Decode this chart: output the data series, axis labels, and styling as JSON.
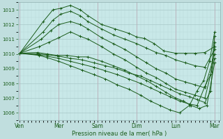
{
  "background_color": "#c0dede",
  "plot_bg_color": "#c8e8e8",
  "grid_major_color": "#a8c8c8",
  "grid_minor_color": "#b8d8d8",
  "line_color": "#1a5c1a",
  "ylim": [
    1005.5,
    1013.5
  ],
  "yticks": [
    1006,
    1007,
    1008,
    1009,
    1010,
    1011,
    1012,
    1013
  ],
  "xlabel": "Pression niveau de la mer( hPa )",
  "xtick_labels": [
    "Ven",
    "Mer",
    "Sam",
    "Dim",
    "Lun",
    "Mar"
  ],
  "xtick_positions": [
    0,
    1,
    2,
    3,
    4,
    5
  ],
  "lines": [
    {
      "x": [
        0.0,
        0.6,
        0.85,
        1.05,
        1.3,
        1.55,
        1.75,
        2.1,
        2.45,
        2.8,
        3.0,
        3.2,
        3.45,
        3.7,
        4.0,
        4.25,
        4.5,
        4.75,
        5.0
      ],
      "y": [
        1010.05,
        1012.2,
        1013.0,
        1013.1,
        1013.3,
        1013.0,
        1012.6,
        1012.0,
        1011.7,
        1011.4,
        1011.15,
        1011.05,
        1010.7,
        1010.2,
        1010.05,
        1010.05,
        1010.05,
        1010.1,
        1010.5
      ]
    },
    {
      "x": [
        0.0,
        0.6,
        0.85,
        1.05,
        1.3,
        1.55,
        1.75,
        2.1,
        2.4,
        2.7,
        3.0,
        3.25,
        3.5,
        3.75,
        4.0,
        4.25,
        4.5,
        4.75,
        5.0
      ],
      "y": [
        1010.05,
        1011.5,
        1012.3,
        1012.7,
        1012.9,
        1012.6,
        1012.2,
        1011.7,
        1011.3,
        1011.0,
        1010.7,
        1010.4,
        1010.1,
        1009.9,
        1009.6,
        1009.4,
        1009.2,
        1009.1,
        1010.3
      ]
    },
    {
      "x": [
        0.0,
        0.55,
        0.8,
        1.0,
        1.3,
        1.55,
        1.75,
        2.1,
        2.4,
        2.7,
        3.0,
        3.25,
        3.5,
        3.75,
        4.0,
        4.25,
        4.5,
        4.75,
        5.0
      ],
      "y": [
        1010.05,
        1011.0,
        1011.6,
        1012.0,
        1012.2,
        1012.0,
        1011.7,
        1011.1,
        1010.7,
        1010.3,
        1009.8,
        1009.4,
        1009.0,
        1008.7,
        1008.3,
        1008.1,
        1007.9,
        1007.7,
        1010.0
      ]
    },
    {
      "x": [
        0.0,
        0.5,
        0.75,
        1.0,
        1.3,
        1.55,
        1.75,
        2.1,
        2.4,
        2.7,
        3.0,
        3.25,
        3.5,
        3.75,
        4.0,
        4.25,
        4.5,
        4.75,
        5.0
      ],
      "y": [
        1010.05,
        1010.5,
        1010.8,
        1011.1,
        1011.5,
        1011.2,
        1011.0,
        1010.5,
        1010.0,
        1009.6,
        1009.1,
        1008.7,
        1008.4,
        1008.0,
        1007.6,
        1007.4,
        1007.2,
        1007.0,
        1009.7
      ]
    },
    {
      "x": [
        0.0,
        0.45,
        0.7,
        0.95,
        1.2,
        1.5,
        1.75,
        2.1,
        2.4,
        2.7,
        3.0,
        3.25,
        3.5,
        3.75,
        4.0,
        4.2,
        4.4,
        4.6,
        4.8,
        5.0
      ],
      "y": [
        1010.05,
        1010.1,
        1010.0,
        1009.9,
        1009.9,
        1009.8,
        1009.8,
        1009.5,
        1009.2,
        1008.9,
        1008.5,
        1008.2,
        1007.8,
        1007.4,
        1007.0,
        1006.8,
        1006.5,
        1006.3,
        1006.5,
        1009.4
      ]
    },
    {
      "x": [
        0.0,
        0.5,
        0.7,
        1.0,
        1.3,
        1.6,
        1.9,
        2.2,
        2.5,
        2.8,
        3.1,
        3.35,
        3.6,
        3.85,
        4.1,
        4.35,
        4.55,
        4.75,
        4.9,
        5.0
      ],
      "y": [
        1010.05,
        1010.0,
        1009.95,
        1009.85,
        1009.7,
        1009.6,
        1009.4,
        1009.2,
        1009.0,
        1008.7,
        1008.5,
        1008.2,
        1007.9,
        1007.6,
        1007.3,
        1007.1,
        1006.9,
        1006.7,
        1007.5,
        1010.8
      ]
    },
    {
      "x": [
        0.0,
        0.5,
        0.7,
        1.0,
        1.3,
        1.6,
        1.9,
        2.2,
        2.5,
        2.8,
        3.1,
        3.35,
        3.6,
        3.85,
        4.1,
        4.35,
        4.55,
        4.75,
        4.9,
        5.0
      ],
      "y": [
        1010.05,
        1009.95,
        1009.85,
        1009.7,
        1009.5,
        1009.3,
        1009.1,
        1008.85,
        1008.6,
        1008.3,
        1008.0,
        1007.7,
        1007.4,
        1007.1,
        1006.8,
        1006.6,
        1006.5,
        1007.8,
        1008.6,
        1011.2
      ]
    },
    {
      "x": [
        0.0,
        0.5,
        0.7,
        1.0,
        1.3,
        1.6,
        1.9,
        2.2,
        2.5,
        2.8,
        3.1,
        3.35,
        3.6,
        3.85,
        4.1,
        4.35,
        4.55,
        4.72,
        4.87,
        5.0
      ],
      "y": [
        1010.05,
        1009.9,
        1009.75,
        1009.5,
        1009.2,
        1008.9,
        1008.6,
        1008.3,
        1007.9,
        1007.6,
        1007.2,
        1006.8,
        1006.5,
        1006.2,
        1006.0,
        1006.5,
        1007.5,
        1008.2,
        1009.5,
        1011.5
      ]
    }
  ]
}
